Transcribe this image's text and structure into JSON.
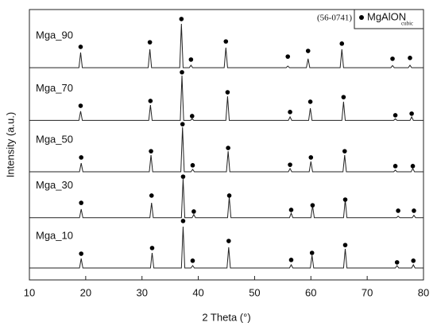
{
  "chart_data": {
    "type": "line",
    "xlabel": "2 Theta (°)",
    "ylabel": "Intensity (a.u.)",
    "xlim": [
      10,
      80
    ],
    "xticks": [
      10,
      20,
      30,
      40,
      50,
      60,
      70,
      80
    ],
    "ylim": [
      0,
      100
    ],
    "color": "#222222",
    "marker_color": "#000000",
    "legend": {
      "source": "(56-0741)",
      "label": "MgAlON",
      "subscript": "cubic"
    },
    "series": [
      {
        "name": "Mga_90",
        "x": [
          10,
          18.8,
          19.1,
          19.4,
          31.1,
          31.4,
          31.7,
          36.7,
          37,
          37.3,
          38.4,
          38.7,
          39,
          44.6,
          44.9,
          45.2,
          55.6,
          55.9,
          56.2,
          59.2,
          59.5,
          59.8,
          65.2,
          65.5,
          65.8,
          74.2,
          74.5,
          74.8,
          77.3,
          77.6,
          77.9,
          80
        ],
        "values": [
          78.5,
          78.5,
          84.1,
          78.5,
          78.5,
          85.3,
          78.5,
          78.5,
          94.7,
          78.5,
          78.5,
          79.4,
          78.5,
          78.5,
          85.9,
          78.5,
          78.5,
          79.1,
          78.5,
          78.5,
          81.8,
          78.5,
          78.5,
          85.3,
          78.5,
          78.5,
          79.3,
          78.5,
          78.5,
          79.4,
          78.5,
          78.5
        ],
        "marker_values": [
          86.2,
          87.9,
          96.5,
          81.5,
          88.2,
          82.6,
          84.7,
          87.4,
          81.8,
          82.1
        ]
      },
      {
        "name": "Mga_70",
        "x": [
          10,
          18.8,
          19.1,
          19.4,
          31.2,
          31.5,
          31.8,
          36.8,
          37.1,
          37.4,
          38.6,
          38.9,
          39.2,
          44.9,
          45.2,
          45.5,
          56,
          56.3,
          56.6,
          59.6,
          59.9,
          60.2,
          65.5,
          65.8,
          66.1,
          74.7,
          75,
          75.3,
          77.6,
          77.9,
          78.2,
          80
        ],
        "values": [
          59,
          59,
          62.4,
          59,
          59,
          64.7,
          59,
          59,
          75.6,
          59,
          59,
          59.6,
          59,
          59,
          67.9,
          59,
          59,
          60.3,
          59,
          59,
          63.5,
          59,
          59,
          65.9,
          59,
          59,
          59.6,
          59,
          59,
          60.3,
          59,
          59
        ],
        "marker_values": [
          64.4,
          66.2,
          76.8,
          60.6,
          69.4,
          62.1,
          65.9,
          67.6,
          60.9,
          61.5
        ]
      },
      {
        "name": "Mga_50",
        "x": [
          10,
          18.9,
          19.2,
          19.5,
          31.3,
          31.6,
          31.9,
          36.9,
          37.2,
          37.5,
          38.7,
          39,
          39.3,
          45,
          45.3,
          45.6,
          56,
          56.3,
          56.6,
          59.7,
          60,
          60.3,
          65.7,
          66,
          66.3,
          74.7,
          75,
          75.3,
          77.8,
          78.1,
          78.4,
          80
        ],
        "values": [
          40,
          40,
          43.2,
          40,
          40,
          46.2,
          40,
          40,
          56.5,
          40,
          40,
          40.9,
          40,
          40,
          47.6,
          40,
          40,
          41.2,
          40,
          40,
          43.8,
          40,
          40,
          46.2,
          40,
          40,
          40.6,
          40,
          40,
          41.2,
          40,
          40
        ],
        "marker_values": [
          45.3,
          47.6,
          57.6,
          42.4,
          48.8,
          42.6,
          45.3,
          47.6,
          42.1,
          42.1
        ]
      },
      {
        "name": "Mga_30",
        "x": [
          10,
          18.9,
          19.2,
          19.5,
          31.4,
          31.7,
          32,
          37,
          37.3,
          37.6,
          38.9,
          39.2,
          39.5,
          45.2,
          45.5,
          45.8,
          56.2,
          56.5,
          56.8,
          60,
          60.3,
          60.6,
          65.8,
          66.1,
          66.4,
          75.2,
          75.5,
          75.8,
          78,
          78.3,
          78.6,
          80
        ],
        "values": [
          23,
          23,
          26.2,
          23,
          23,
          28.5,
          23,
          23,
          37.4,
          23,
          23,
          24.2,
          23,
          23,
          30.6,
          23,
          23,
          24.7,
          23,
          23,
          27.4,
          23,
          23,
          29.6,
          23,
          23,
          23.6,
          23,
          23,
          23.9,
          23,
          23
        ],
        "marker_values": [
          28.5,
          31.2,
          38.2,
          25.3,
          31.2,
          25.9,
          27.6,
          29.7,
          25.6,
          25.6
        ]
      },
      {
        "name": "Mga_10",
        "x": [
          10,
          18.9,
          19.2,
          19.5,
          31.5,
          31.8,
          32.1,
          37,
          37.3,
          37.6,
          38.7,
          39,
          39.3,
          45.1,
          45.4,
          45.7,
          56.2,
          56.5,
          56.8,
          59.9,
          60.2,
          60.5,
          65.8,
          66.1,
          66.4,
          75,
          75.3,
          75.6,
          77.9,
          78.2,
          78.5,
          80
        ],
        "values": [
          4.4,
          4.4,
          7.9,
          4.4,
          4.4,
          10,
          4.4,
          4.4,
          19.7,
          4.4,
          4.4,
          5.3,
          4.4,
          4.4,
          12.1,
          4.4,
          4.4,
          5.6,
          4.4,
          4.4,
          9.1,
          4.4,
          4.4,
          11.5,
          4.4,
          4.4,
          5.3,
          4.4,
          4.4,
          5.6,
          4.4,
          4.4
        ],
        "marker_values": [
          9.7,
          11.8,
          21.8,
          7.1,
          14.4,
          7.4,
          10,
          12.9,
          6.5,
          7.1
        ]
      }
    ]
  }
}
